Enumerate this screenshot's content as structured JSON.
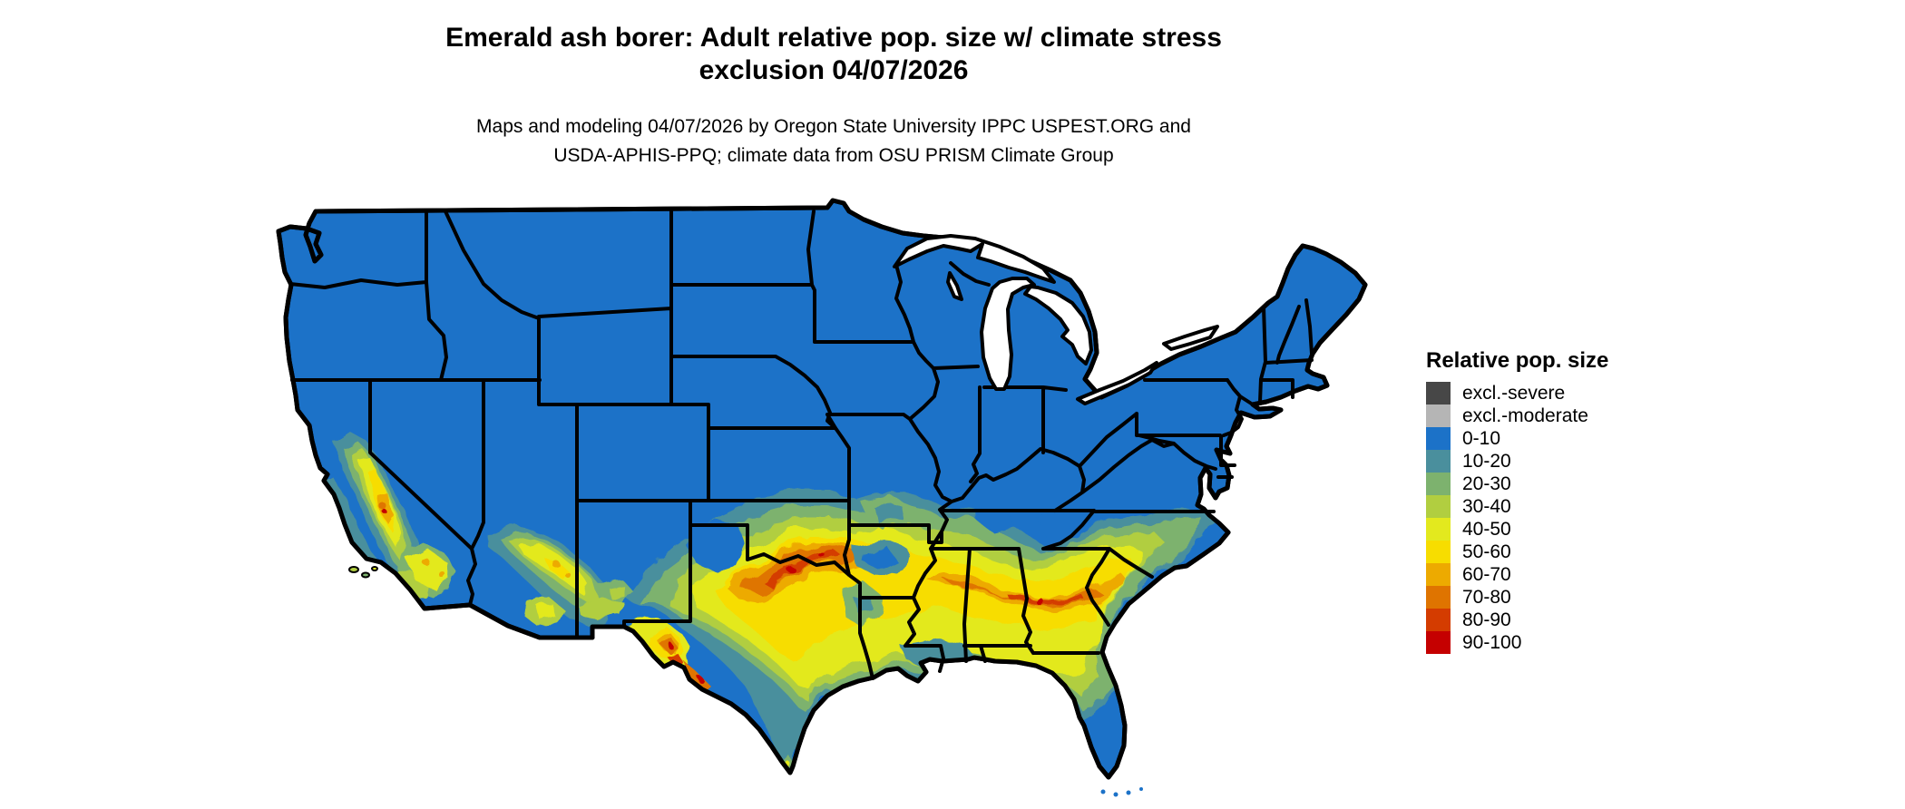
{
  "title": {
    "line1": "Emerald ash borer: Adult relative pop. size w/ climate stress",
    "line2": "exclusion 04/07/2026"
  },
  "subtitle": {
    "line1": "Maps and modeling 04/07/2026 by Oregon State University IPPC USPEST.ORG and",
    "line2": "USDA-APHIS-PPQ; climate data from OSU PRISM Climate Group"
  },
  "legend": {
    "title": "Relative pop. size",
    "items": [
      {
        "label": "excl.-severe",
        "color": "#474747"
      },
      {
        "label": "excl.-moderate",
        "color": "#b5b5b5"
      },
      {
        "label": "0-10",
        "color": "#1c72c8"
      },
      {
        "label": "10-20",
        "color": "#4a8f9d"
      },
      {
        "label": "20-30",
        "color": "#7db26e"
      },
      {
        "label": "30-40",
        "color": "#b1ce40"
      },
      {
        "label": "40-50",
        "color": "#e3e91e"
      },
      {
        "label": "50-60",
        "color": "#f7dd00"
      },
      {
        "label": "60-70",
        "color": "#edaa00"
      },
      {
        "label": "70-80",
        "color": "#df7400"
      },
      {
        "label": "80-90",
        "color": "#d43c00"
      },
      {
        "label": "90-100",
        "color": "#c50000"
      }
    ]
  },
  "map": {
    "region": "Contiguous United States",
    "background": "#ffffff",
    "state_border_color": "#000000",
    "water_color": "#ffffff"
  }
}
